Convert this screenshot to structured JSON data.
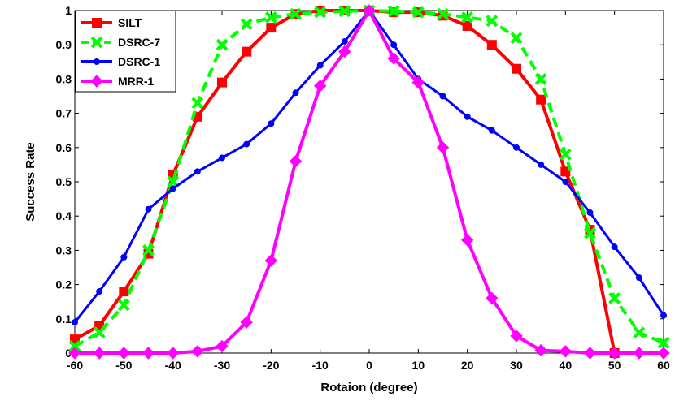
{
  "chart_data": {
    "type": "line",
    "title": "",
    "xlabel": "Rotaion (degree)",
    "ylabel": "Success Rate",
    "xlim": [
      -60,
      60
    ],
    "ylim": [
      0,
      1
    ],
    "grid": false,
    "legend_position": "top-left",
    "x_ticks": [
      "-60",
      "-50",
      "-40",
      "-30",
      "-20",
      "-10",
      "0",
      "10",
      "20",
      "30",
      "40",
      "50",
      "60"
    ],
    "y_ticks": [
      "0",
      "0.1",
      "0.2",
      "0.3",
      "0.4",
      "0.5",
      "0.6",
      "0.7",
      "0.8",
      "0.9",
      "1"
    ],
    "x": [
      -60,
      -55,
      -50,
      -45,
      -40,
      -35,
      -30,
      -25,
      -20,
      -15,
      -10,
      -5,
      0,
      5,
      10,
      15,
      20,
      25,
      30,
      35,
      40,
      45,
      50,
      55,
      60
    ],
    "series": [
      {
        "name": "SILT",
        "color": "#ff0000",
        "marker": "square",
        "dash": "solid",
        "x": [
          -60,
          -55,
          -50,
          -45,
          -40,
          -35,
          -30,
          -25,
          -20,
          -15,
          -10,
          -5,
          0,
          5,
          10,
          15,
          20,
          25,
          30,
          35,
          40,
          45,
          50
        ],
        "values": [
          0.04,
          0.08,
          0.18,
          0.29,
          0.52,
          0.69,
          0.79,
          0.88,
          0.95,
          0.99,
          1.0,
          1.0,
          1.0,
          0.995,
          0.995,
          0.985,
          0.955,
          0.9,
          0.83,
          0.74,
          0.53,
          0.36,
          0.0
        ]
      },
      {
        "name": "DSRC-7",
        "color": "#00ff00",
        "marker": "x",
        "dash": "dashed",
        "x": [
          -60,
          -55,
          -50,
          -45,
          -40,
          -35,
          -30,
          -25,
          -20,
          -15,
          -10,
          -5,
          0,
          5,
          10,
          15,
          20,
          25,
          30,
          35,
          40,
          45,
          50,
          55,
          60
        ],
        "values": [
          0.02,
          0.06,
          0.14,
          0.3,
          0.5,
          0.73,
          0.9,
          0.96,
          0.98,
          0.99,
          0.995,
          0.998,
          1.0,
          0.998,
          0.995,
          0.99,
          0.98,
          0.97,
          0.92,
          0.8,
          0.58,
          0.35,
          0.16,
          0.06,
          0.03
        ]
      },
      {
        "name": "DSRC-1",
        "color": "#0000ff",
        "marker": "dot",
        "dash": "solid",
        "x": [
          -60,
          -55,
          -50,
          -45,
          -40,
          -35,
          -30,
          -25,
          -20,
          -15,
          -10,
          -5,
          0,
          5,
          10,
          15,
          20,
          25,
          30,
          35,
          40,
          45,
          50,
          55,
          60
        ],
        "values": [
          0.09,
          0.18,
          0.28,
          0.42,
          0.48,
          0.53,
          0.57,
          0.61,
          0.67,
          0.76,
          0.84,
          0.91,
          1.0,
          0.9,
          0.8,
          0.75,
          0.69,
          0.65,
          0.6,
          0.55,
          0.5,
          0.41,
          0.31,
          0.22,
          0.11
        ]
      },
      {
        "name": "MRR-1",
        "color": "#ff00ff",
        "marker": "diamond",
        "dash": "solid",
        "x": [
          -60,
          -55,
          -50,
          -45,
          -40,
          -35,
          -30,
          -25,
          -20,
          -15,
          -10,
          -5,
          0,
          5,
          10,
          15,
          20,
          25,
          30,
          35,
          40,
          45,
          50,
          55,
          60
        ],
        "values": [
          0.0,
          0.0,
          0.0,
          0.0,
          0.0,
          0.005,
          0.02,
          0.09,
          0.27,
          0.56,
          0.78,
          0.88,
          1.0,
          0.86,
          0.79,
          0.6,
          0.33,
          0.16,
          0.05,
          0.008,
          0.005,
          0.0,
          0.0,
          0.0,
          0.0
        ]
      }
    ]
  }
}
